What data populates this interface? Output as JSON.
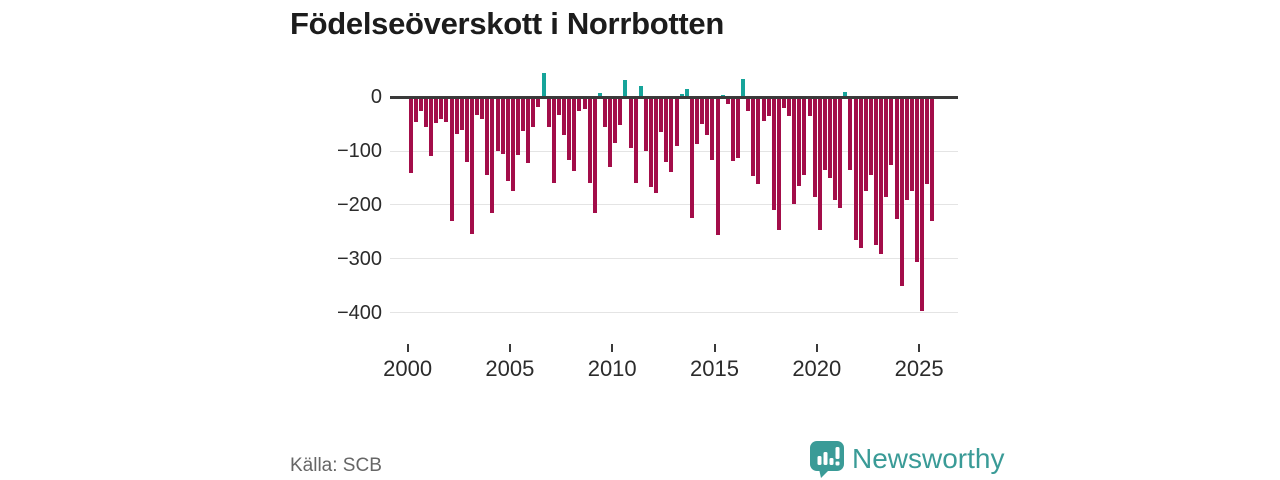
{
  "header": {
    "title": "Födelseöverskott i Norrbotten"
  },
  "footer": {
    "source_label": "Källa: SCB",
    "brand": {
      "name": "Newsworthy",
      "icon": "newsworthy-speech-bubble-bar-chart-icon"
    }
  },
  "colors": {
    "negative_bar": "#a30d49",
    "positive_bar": "#16a49a",
    "axis_line": "#3a3a3a",
    "gridline": "#e4e4e4",
    "title_text": "#1c1c1c",
    "axis_text": "#2b2b2b",
    "source_text": "#666666",
    "brand_teal": "#3a9b97"
  },
  "chart_data": {
    "type": "bar",
    "title": "Födelseöverskott i Norrbotten",
    "grid": true,
    "legend_position": "none",
    "ylim": [
      -430,
      60
    ],
    "y_ticks": [
      0,
      -100,
      -200,
      -300,
      -400
    ],
    "y_tick_labels": [
      "0",
      "−100",
      "−200",
      "−300",
      "−400"
    ],
    "x_ticks_years": [
      2000,
      2005,
      2010,
      2015,
      2020,
      2025
    ],
    "x_tick_labels": [
      "2000",
      "2005",
      "2010",
      "2015",
      "2020",
      "2025"
    ],
    "categories": [
      "2000 Q1",
      "2000 Q2",
      "2000 Q3",
      "2000 Q4",
      "2001 Q1",
      "2001 Q2",
      "2001 Q3",
      "2001 Q4",
      "2002 Q1",
      "2002 Q2",
      "2002 Q3",
      "2002 Q4",
      "2003 Q1",
      "2003 Q2",
      "2003 Q3",
      "2003 Q4",
      "2004 Q1",
      "2004 Q2",
      "2004 Q3",
      "2004 Q4",
      "2005 Q1",
      "2005 Q2",
      "2005 Q3",
      "2005 Q4",
      "2006 Q1",
      "2006 Q2",
      "2006 Q3",
      "2006 Q4",
      "2007 Q1",
      "2007 Q2",
      "2007 Q3",
      "2007 Q4",
      "2008 Q1",
      "2008 Q2",
      "2008 Q3",
      "2008 Q4",
      "2009 Q1",
      "2009 Q2",
      "2009 Q3",
      "2009 Q4",
      "2010 Q1",
      "2010 Q2",
      "2010 Q3",
      "2010 Q4",
      "2011 Q1",
      "2011 Q2",
      "2011 Q3",
      "2011 Q4",
      "2012 Q1",
      "2012 Q2",
      "2012 Q3",
      "2012 Q4",
      "2013 Q1",
      "2013 Q2",
      "2013 Q3",
      "2013 Q4",
      "2014 Q1",
      "2014 Q2",
      "2014 Q3",
      "2014 Q4",
      "2015 Q1",
      "2015 Q2",
      "2015 Q3",
      "2015 Q4",
      "2016 Q1",
      "2016 Q2",
      "2016 Q3",
      "2016 Q4",
      "2017 Q1",
      "2017 Q2",
      "2017 Q3",
      "2017 Q4",
      "2018 Q1",
      "2018 Q2",
      "2018 Q3",
      "2018 Q4",
      "2019 Q1",
      "2019 Q2",
      "2019 Q3",
      "2019 Q4",
      "2020 Q1",
      "2020 Q2",
      "2020 Q3",
      "2020 Q4",
      "2021 Q1",
      "2021 Q2",
      "2021 Q3",
      "2021 Q4",
      "2022 Q1",
      "2022 Q2",
      "2022 Q3",
      "2022 Q4",
      "2023 Q1",
      "2023 Q2",
      "2023 Q3",
      "2023 Q4",
      "2024 Q1",
      "2024 Q2",
      "2024 Q3",
      "2024 Q4",
      "2025 Q1",
      "2025 Q2",
      "2025 Q3"
    ],
    "values": [
      -140,
      -45,
      -25,
      -55,
      -110,
      -48,
      -40,
      -45,
      -230,
      -68,
      -60,
      -120,
      -255,
      -32,
      -40,
      -145,
      -215,
      -100,
      -105,
      -155,
      -175,
      -107,
      -62,
      -123,
      -56,
      -18,
      45,
      -56,
      -160,
      -33,
      -70,
      -117,
      -137,
      -25,
      -22,
      -160,
      -215,
      8,
      -55,
      -130,
      -85,
      -52,
      32,
      -95,
      -160,
      21,
      -100,
      -167,
      -178,
      -65,
      -120,
      -138,
      -90,
      6,
      15,
      -225,
      -87,
      -50,
      -71,
      -116,
      -256,
      4,
      -13,
      -118,
      -113,
      34,
      -25,
      -147,
      -162,
      -44,
      -35,
      -210,
      -247,
      -19,
      -35,
      -198,
      -165,
      -144,
      -35,
      -186,
      -247,
      -135,
      -150,
      -190,
      -205,
      10,
      -135,
      -265,
      -281,
      -174,
      -145,
      -275,
      -292,
      -186,
      -125,
      -227,
      -351,
      -191,
      -175,
      -306,
      -397,
      -161,
      -230
    ]
  }
}
